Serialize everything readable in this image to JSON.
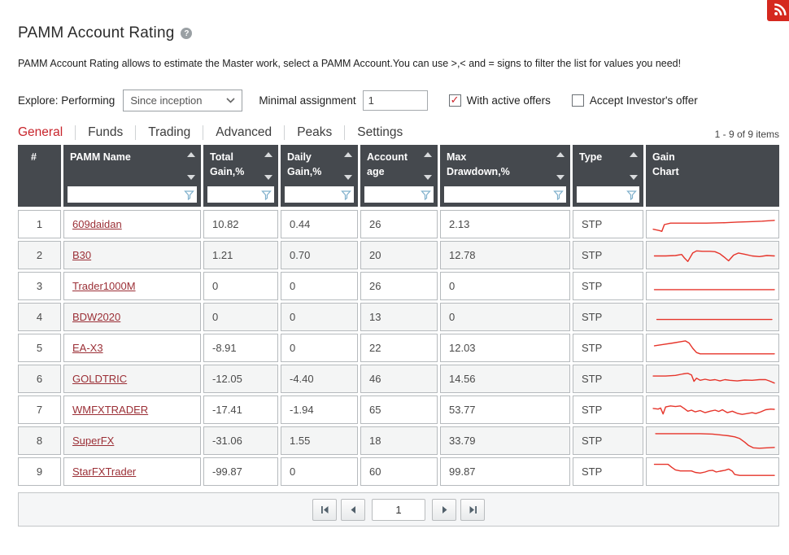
{
  "page": {
    "title": "PAMM Account Rating",
    "help_icon": "?",
    "description": "PAMM Account Rating allows to estimate the Master work, select a PAMM Account.You can use >,< and = signs to filter the list for values you need!"
  },
  "colors": {
    "accent_red": "#c8252c",
    "link_red": "#9b2f36",
    "sparkline_red": "#e6352b",
    "rss_red": "#d5281e",
    "header_bg": "#45494e",
    "funnel_blue": "#7fb0cc"
  },
  "filters": {
    "explore_label": "Explore: Performing",
    "period_select_value": "Since inception",
    "minimal_assignment_label": "Minimal assignment",
    "minimal_assignment_value": "1",
    "with_active_offers_label": "With active offers",
    "with_active_offers_checked": true,
    "check_mark": "✓",
    "accept_investors_label": "Accept Investor's offer",
    "accept_investors_checked": false
  },
  "tabs": [
    {
      "label": "General",
      "active": true
    },
    {
      "label": "Funds",
      "active": false
    },
    {
      "label": "Trading",
      "active": false
    },
    {
      "label": "Advanced",
      "active": false
    },
    {
      "label": "Peaks",
      "active": false
    },
    {
      "label": "Settings",
      "active": false
    }
  ],
  "items_count": "1 - 9 of 9 items",
  "table": {
    "columns": [
      {
        "label": "#",
        "sortable": false,
        "filterable": false,
        "align": "center"
      },
      {
        "label": "PAMM Name",
        "sortable": true,
        "filterable": true
      },
      {
        "label": "Total\nGain,%",
        "sortable": true,
        "filterable": true
      },
      {
        "label": "Daily\nGain,%",
        "sortable": true,
        "filterable": true
      },
      {
        "label": "Account\nage",
        "sortable": true,
        "filterable": true
      },
      {
        "label": "Max\nDrawdown,%",
        "sortable": true,
        "filterable": true
      },
      {
        "label": "Type",
        "sortable": true,
        "filterable": true
      },
      {
        "label": "Gain\nChart",
        "sortable": false,
        "filterable": false
      }
    ],
    "filter_values": [
      "",
      "",
      "",
      "",
      "",
      ""
    ],
    "rows": [
      {
        "rank": "1",
        "name": "609daidan",
        "total_gain": "10.82",
        "daily_gain": "0.44",
        "account_age": "26",
        "max_drawdown": "2.13",
        "type": "STP",
        "spark": [
          [
            2,
            72
          ],
          [
            7,
            78
          ],
          [
            9,
            82
          ],
          [
            11,
            50
          ],
          [
            16,
            43
          ],
          [
            30,
            43
          ],
          [
            45,
            43
          ],
          [
            60,
            41
          ],
          [
            70,
            38
          ],
          [
            80,
            36
          ],
          [
            90,
            34
          ],
          [
            100,
            30
          ]
        ]
      },
      {
        "rank": "2",
        "name": "B30",
        "total_gain": "1.21",
        "daily_gain": "0.70",
        "account_age": "20",
        "max_drawdown": "12.78",
        "type": "STP",
        "spark": [
          [
            3,
            52
          ],
          [
            12,
            52
          ],
          [
            20,
            50
          ],
          [
            25,
            45
          ],
          [
            27,
            60
          ],
          [
            30,
            78
          ],
          [
            34,
            38
          ],
          [
            37,
            28
          ],
          [
            42,
            30
          ],
          [
            48,
            30
          ],
          [
            52,
            32
          ],
          [
            56,
            42
          ],
          [
            60,
            60
          ],
          [
            63,
            75
          ],
          [
            67,
            48
          ],
          [
            71,
            38
          ],
          [
            76,
            44
          ],
          [
            82,
            52
          ],
          [
            88,
            55
          ],
          [
            94,
            50
          ],
          [
            100,
            52
          ]
        ]
      },
      {
        "rank": "3",
        "name": "Trader1000M",
        "total_gain": "0",
        "daily_gain": "0",
        "account_age": "26",
        "max_drawdown": "0",
        "type": "STP",
        "spark": [
          [
            3,
            65
          ],
          [
            100,
            65
          ]
        ]
      },
      {
        "rank": "4",
        "name": "BDW2020",
        "total_gain": "0",
        "daily_gain": "0",
        "account_age": "13",
        "max_drawdown": "0",
        "type": "STP",
        "spark": [
          [
            5,
            60
          ],
          [
            98,
            60
          ]
        ]
      },
      {
        "rank": "5",
        "name": "EA-X3",
        "total_gain": "-8.91",
        "daily_gain": "0",
        "account_age": "22",
        "max_drawdown": "12.03",
        "type": "STP",
        "spark": [
          [
            3,
            38
          ],
          [
            10,
            32
          ],
          [
            18,
            25
          ],
          [
            25,
            18
          ],
          [
            28,
            15
          ],
          [
            31,
            25
          ],
          [
            34,
            50
          ],
          [
            37,
            70
          ],
          [
            40,
            76
          ],
          [
            50,
            76
          ],
          [
            100,
            76
          ]
        ]
      },
      {
        "rank": "6",
        "name": "GOLDTRIC",
        "total_gain": "-12.05",
        "daily_gain": "-4.40",
        "account_age": "46",
        "max_drawdown": "14.56",
        "type": "STP",
        "spark": [
          [
            2,
            35
          ],
          [
            12,
            35
          ],
          [
            20,
            32
          ],
          [
            26,
            25
          ],
          [
            30,
            22
          ],
          [
            33,
            30
          ],
          [
            35,
            60
          ],
          [
            37,
            45
          ],
          [
            40,
            55
          ],
          [
            44,
            50
          ],
          [
            48,
            55
          ],
          [
            52,
            52
          ],
          [
            56,
            58
          ],
          [
            60,
            52
          ],
          [
            64,
            55
          ],
          [
            70,
            58
          ],
          [
            76,
            54
          ],
          [
            82,
            55
          ],
          [
            88,
            52
          ],
          [
            93,
            52
          ],
          [
            96,
            58
          ],
          [
            100,
            68
          ]
        ]
      },
      {
        "rank": "7",
        "name": "WMFXTRADER",
        "total_gain": "-17.41",
        "daily_gain": "-1.94",
        "account_age": "65",
        "max_drawdown": "53.77",
        "type": "STP",
        "spark": [
          [
            2,
            42
          ],
          [
            6,
            45
          ],
          [
            8,
            40
          ],
          [
            10,
            68
          ],
          [
            12,
            35
          ],
          [
            16,
            30
          ],
          [
            20,
            33
          ],
          [
            24,
            30
          ],
          [
            27,
            42
          ],
          [
            30,
            55
          ],
          [
            33,
            50
          ],
          [
            36,
            58
          ],
          [
            40,
            52
          ],
          [
            44,
            62
          ],
          [
            48,
            55
          ],
          [
            52,
            50
          ],
          [
            55,
            56
          ],
          [
            58,
            48
          ],
          [
            62,
            62
          ],
          [
            66,
            55
          ],
          [
            70,
            65
          ],
          [
            74,
            70
          ],
          [
            78,
            66
          ],
          [
            82,
            62
          ],
          [
            85,
            66
          ],
          [
            89,
            58
          ],
          [
            93,
            48
          ],
          [
            97,
            45
          ],
          [
            100,
            46
          ]
        ]
      },
      {
        "rank": "8",
        "name": "SuperFX",
        "total_gain": "-31.06",
        "daily_gain": "1.55",
        "account_age": "18",
        "max_drawdown": "33.79",
        "type": "STP",
        "spark": [
          [
            4,
            15
          ],
          [
            40,
            15
          ],
          [
            50,
            17
          ],
          [
            58,
            22
          ],
          [
            63,
            25
          ],
          [
            68,
            30
          ],
          [
            72,
            38
          ],
          [
            76,
            55
          ],
          [
            79,
            70
          ],
          [
            83,
            82
          ],
          [
            88,
            84
          ],
          [
            100,
            80
          ]
        ]
      },
      {
        "rank": "9",
        "name": "StarFXTrader",
        "total_gain": "-99.87",
        "daily_gain": "0",
        "account_age": "60",
        "max_drawdown": "99.87",
        "type": "STP",
        "spark": [
          [
            3,
            14
          ],
          [
            14,
            14
          ],
          [
            17,
            28
          ],
          [
            20,
            40
          ],
          [
            24,
            45
          ],
          [
            33,
            45
          ],
          [
            36,
            52
          ],
          [
            40,
            55
          ],
          [
            44,
            50
          ],
          [
            47,
            44
          ],
          [
            50,
            42
          ],
          [
            53,
            50
          ],
          [
            56,
            46
          ],
          [
            60,
            42
          ],
          [
            63,
            36
          ],
          [
            66,
            46
          ],
          [
            68,
            62
          ],
          [
            72,
            66
          ],
          [
            100,
            66
          ]
        ]
      }
    ]
  },
  "pager": {
    "page_value": "1"
  }
}
